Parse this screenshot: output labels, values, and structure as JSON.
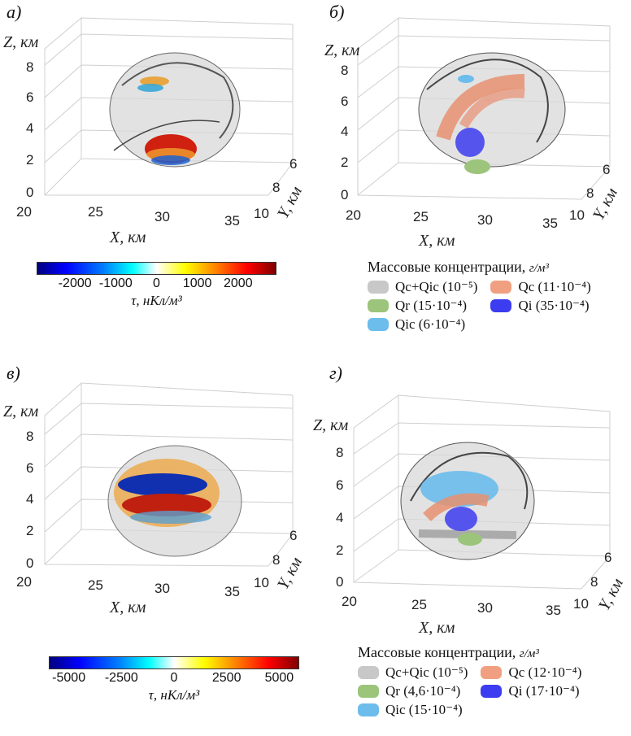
{
  "panels": [
    {
      "label": "а)",
      "z_title": "Z, км",
      "x_title": "X, км",
      "y_title": "Y, км",
      "z_ticks": [
        "0",
        "2",
        "4",
        "6",
        "8"
      ],
      "x_ticks": [
        "20",
        "25",
        "30",
        "35"
      ],
      "y_ticks": [
        "10",
        "8",
        "6"
      ]
    },
    {
      "label": "б)",
      "z_title": "Z, км",
      "x_title": "X, км",
      "y_title": "Y, км",
      "z_ticks": [
        "0",
        "2",
        "4",
        "6",
        "8"
      ],
      "x_ticks": [
        "20",
        "25",
        "30",
        "35"
      ],
      "y_ticks": [
        "10",
        "8",
        "6"
      ]
    },
    {
      "label": "в)",
      "z_title": "Z, км",
      "x_title": "X, км",
      "y_title": "Y, км",
      "z_ticks": [
        "0",
        "2",
        "4",
        "6",
        "8"
      ],
      "x_ticks": [
        "20",
        "25",
        "30",
        "35"
      ],
      "y_ticks": [
        "10",
        "8",
        "6"
      ]
    },
    {
      "label": "г)",
      "z_title": "Z, км",
      "x_title": "X, км",
      "y_title": "Y, км",
      "z_ticks": [
        "0",
        "2",
        "4",
        "6",
        "8"
      ],
      "x_ticks": [
        "20",
        "25",
        "30",
        "35"
      ],
      "y_ticks": [
        "10",
        "8",
        "6"
      ]
    }
  ],
  "colorbar_a": {
    "ticks": [
      "-2000",
      "-1000",
      "0",
      "1000",
      "2000"
    ],
    "label": "τ, нКл/м³"
  },
  "colorbar_c": {
    "ticks": [
      "-5000",
      "-2500",
      "0",
      "2500",
      "5000"
    ],
    "label": "τ, нКл/м³"
  },
  "legend_b": {
    "title": "Массовые концентрации,",
    "unit": "г/м³",
    "items": [
      {
        "text": "Qc+Qic (10⁻⁵)",
        "color": "#c8c8c8"
      },
      {
        "text": "Qc (11·10⁻⁴)",
        "color": "#f0a080"
      },
      {
        "text": "Qr (15·10⁻⁴)",
        "color": "#9cc47a"
      },
      {
        "text": "Qi (35·10⁻⁴)",
        "color": "#3c3cf0"
      },
      {
        "text": "Qic (6·10⁻⁴)",
        "color": "#6cbcec"
      }
    ]
  },
  "legend_d": {
    "title": "Массовые концентрации,",
    "unit": "г/м³",
    "items": [
      {
        "text": "Qc+Qic (10⁻⁵)",
        "color": "#c8c8c8"
      },
      {
        "text": "Qc (12·10⁻⁴)",
        "color": "#f0a080"
      },
      {
        "text": "Qr (4,6·10⁻⁴)",
        "color": "#9cc47a"
      },
      {
        "text": "Qi (17·10⁻⁴)",
        "color": "#3c3cf0"
      },
      {
        "text": "Qic (15·10⁻⁴)",
        "color": "#6cbcec"
      }
    ]
  }
}
